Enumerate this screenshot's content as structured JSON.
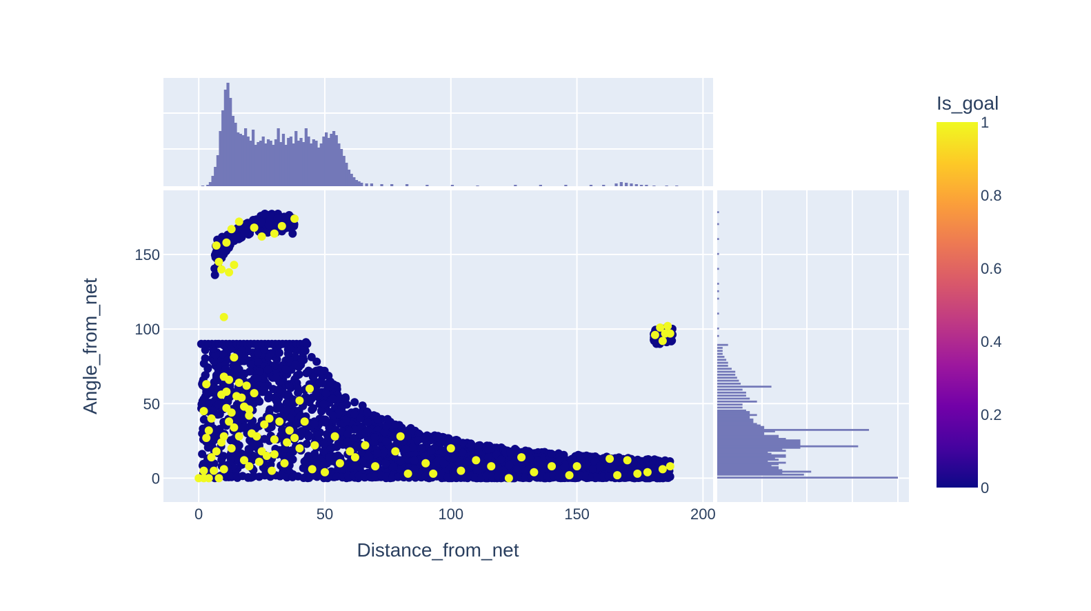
{
  "chart_data": {
    "type": "scatter",
    "xlabel": "Distance_from_net",
    "ylabel": "Angle_from_net",
    "x_ticks": [
      0,
      50,
      100,
      150,
      200
    ],
    "y_ticks": [
      0,
      50,
      100,
      150
    ],
    "x_tick_labels": [
      "0",
      "50",
      "100",
      "150",
      "200"
    ],
    "y_tick_labels": [
      "0",
      "50",
      "100",
      "150"
    ],
    "xlim": [
      -14,
      204
    ],
    "ylim": [
      -16,
      193
    ],
    "colorbar": {
      "title": "Is_goal",
      "range": [
        0,
        1
      ],
      "ticks": [
        "0",
        "0.2",
        "0.4",
        "0.6",
        "0.8",
        "1"
      ],
      "colorscale": [
        "#0d0887",
        "#46039f",
        "#7201a8",
        "#9c179e",
        "#bd3786",
        "#d8576b",
        "#ed7953",
        "#fb9f3a",
        "#fdca26",
        "#f0f921"
      ]
    },
    "colors": {
      "no_goal": "#0d0887",
      "goal": "#f0f921",
      "histogram": "#7378b8",
      "panel": "#e5ecf6"
    },
    "marginal_top": {
      "type": "histogram",
      "bins": [
        [
          1,
          1
        ],
        [
          3,
          2
        ],
        [
          4,
          6
        ],
        [
          5,
          15
        ],
        [
          6,
          28
        ],
        [
          7,
          45
        ],
        [
          8,
          80
        ],
        [
          9,
          110
        ],
        [
          10,
          140
        ],
        [
          11,
          150
        ],
        [
          12,
          128
        ],
        [
          13,
          102
        ],
        [
          14,
          92
        ],
        [
          15,
          78
        ],
        [
          16,
          76
        ],
        [
          17,
          74
        ],
        [
          18,
          84
        ],
        [
          19,
          72
        ],
        [
          20,
          66
        ],
        [
          21,
          82
        ],
        [
          22,
          60
        ],
        [
          23,
          64
        ],
        [
          24,
          66
        ],
        [
          25,
          72
        ],
        [
          26,
          62
        ],
        [
          27,
          68
        ],
        [
          28,
          66
        ],
        [
          29,
          60
        ],
        [
          30,
          68
        ],
        [
          31,
          84
        ],
        [
          32,
          64
        ],
        [
          33,
          76
        ],
        [
          34,
          60
        ],
        [
          35,
          70
        ],
        [
          36,
          72
        ],
        [
          37,
          62
        ],
        [
          38,
          80
        ],
        [
          39,
          66
        ],
        [
          40,
          70
        ],
        [
          41,
          64
        ],
        [
          42,
          84
        ],
        [
          43,
          72
        ],
        [
          44,
          62
        ],
        [
          45,
          68
        ],
        [
          46,
          66
        ],
        [
          47,
          56
        ],
        [
          48,
          62
        ],
        [
          49,
          72
        ],
        [
          50,
          78
        ],
        [
          51,
          70
        ],
        [
          52,
          76
        ],
        [
          53,
          80
        ],
        [
          54,
          74
        ],
        [
          55,
          62
        ],
        [
          56,
          54
        ],
        [
          57,
          44
        ],
        [
          58,
          34
        ],
        [
          59,
          24
        ],
        [
          60,
          18
        ],
        [
          61,
          13
        ],
        [
          62,
          9
        ],
        [
          63,
          7
        ],
        [
          64,
          5
        ],
        [
          66,
          4
        ],
        [
          68,
          4
        ],
        [
          72,
          3
        ],
        [
          76,
          3
        ],
        [
          82,
          3
        ],
        [
          90,
          2
        ],
        [
          100,
          2
        ],
        [
          110,
          1
        ],
        [
          125,
          2
        ],
        [
          135,
          2
        ],
        [
          145,
          2
        ],
        [
          155,
          2
        ],
        [
          160,
          2
        ],
        [
          165,
          4
        ],
        [
          167,
          6
        ],
        [
          169,
          5
        ],
        [
          171,
          4
        ],
        [
          173,
          3
        ],
        [
          175,
          2
        ],
        [
          177,
          2
        ],
        [
          180,
          1
        ],
        [
          185,
          1
        ],
        [
          189,
          1
        ]
      ]
    },
    "marginal_right": {
      "type": "histogram",
      "bins": [
        [
          0,
          100
        ],
        [
          2,
          48
        ],
        [
          3,
          36
        ],
        [
          4,
          52
        ],
        [
          5,
          36
        ],
        [
          6,
          34
        ],
        [
          7,
          34
        ],
        [
          8,
          30
        ],
        [
          9,
          34
        ],
        [
          10,
          38
        ],
        [
          11,
          28
        ],
        [
          12,
          34
        ],
        [
          13,
          32
        ],
        [
          14,
          38
        ],
        [
          15,
          38
        ],
        [
          16,
          30
        ],
        [
          17,
          28
        ],
        [
          18,
          38
        ],
        [
          19,
          36
        ],
        [
          20,
          46
        ],
        [
          21,
          78
        ],
        [
          22,
          46
        ],
        [
          23,
          46
        ],
        [
          24,
          46
        ],
        [
          25,
          46
        ],
        [
          26,
          38
        ],
        [
          27,
          34
        ],
        [
          28,
          34
        ],
        [
          29,
          26
        ],
        [
          30,
          26
        ],
        [
          31,
          32
        ],
        [
          32,
          84
        ],
        [
          33,
          26
        ],
        [
          34,
          26
        ],
        [
          35,
          24
        ],
        [
          36,
          22
        ],
        [
          37,
          20
        ],
        [
          38,
          20
        ],
        [
          39,
          20
        ],
        [
          40,
          18
        ],
        [
          41,
          18
        ],
        [
          42,
          22
        ],
        [
          43,
          18
        ],
        [
          44,
          18
        ],
        [
          45,
          16
        ],
        [
          47,
          14
        ],
        [
          49,
          14
        ],
        [
          51,
          22
        ],
        [
          53,
          18
        ],
        [
          55,
          16
        ],
        [
          57,
          16
        ],
        [
          59,
          14
        ],
        [
          61,
          30
        ],
        [
          63,
          13
        ],
        [
          65,
          12
        ],
        [
          67,
          11
        ],
        [
          69,
          10
        ],
        [
          71,
          10
        ],
        [
          73,
          8
        ],
        [
          75,
          6
        ],
        [
          77,
          6
        ],
        [
          79,
          5
        ],
        [
          81,
          4
        ],
        [
          83,
          3
        ],
        [
          85,
          3
        ],
        [
          87,
          3
        ],
        [
          89,
          6
        ],
        [
          95,
          1
        ],
        [
          100,
          1
        ],
        [
          110,
          1
        ],
        [
          120,
          1
        ],
        [
          125,
          1
        ],
        [
          130,
          1
        ],
        [
          140,
          1
        ],
        [
          150,
          1
        ],
        [
          160,
          1
        ],
        [
          170,
          1
        ],
        [
          178,
          1
        ]
      ]
    },
    "goal_points": [
      [
        0,
        0
      ],
      [
        2,
        0
      ],
      [
        4,
        0
      ],
      [
        8,
        0
      ],
      [
        3,
        27
      ],
      [
        4,
        32
      ],
      [
        2,
        45
      ],
      [
        5,
        40
      ],
      [
        3,
        63
      ],
      [
        5,
        14
      ],
      [
        7,
        18
      ],
      [
        9,
        24
      ],
      [
        10,
        28
      ],
      [
        10,
        6
      ],
      [
        12,
        38
      ],
      [
        14,
        34
      ],
      [
        13,
        44
      ],
      [
        15,
        55
      ],
      [
        17,
        54
      ],
      [
        16,
        64
      ],
      [
        18,
        48
      ],
      [
        19,
        62
      ],
      [
        20,
        42
      ],
      [
        20,
        46
      ],
      [
        22,
        57
      ],
      [
        21,
        30
      ],
      [
        23,
        28
      ],
      [
        24,
        11
      ],
      [
        25,
        18
      ],
      [
        26,
        36
      ],
      [
        28,
        40
      ],
      [
        30,
        26
      ],
      [
        32,
        38
      ],
      [
        35,
        24
      ],
      [
        38,
        27
      ],
      [
        40,
        20
      ],
      [
        42,
        38
      ],
      [
        14,
        81
      ],
      [
        10,
        68
      ],
      [
        12,
        66
      ],
      [
        11,
        58
      ],
      [
        9,
        56
      ],
      [
        16,
        28
      ],
      [
        18,
        12
      ],
      [
        20,
        8
      ],
      [
        30,
        16
      ],
      [
        34,
        10
      ],
      [
        45,
        6
      ],
      [
        50,
        4
      ],
      [
        56,
        10
      ],
      [
        60,
        18
      ],
      [
        70,
        8
      ],
      [
        78,
        18
      ],
      [
        83,
        3
      ],
      [
        90,
        10
      ],
      [
        93,
        3
      ],
      [
        104,
        5
      ],
      [
        116,
        8
      ],
      [
        123,
        0
      ],
      [
        133,
        4
      ],
      [
        140,
        8
      ],
      [
        147,
        2
      ],
      [
        163,
        13
      ],
      [
        166,
        2
      ],
      [
        174,
        3
      ],
      [
        184,
        6
      ],
      [
        187,
        8
      ],
      [
        8,
        145
      ],
      [
        7,
        156
      ],
      [
        9,
        140
      ],
      [
        11,
        158
      ],
      [
        13,
        167
      ],
      [
        16,
        172
      ],
      [
        22,
        168
      ],
      [
        25,
        162
      ],
      [
        30,
        164
      ],
      [
        33,
        169
      ],
      [
        38,
        174
      ],
      [
        14,
        143
      ],
      [
        10,
        108
      ],
      [
        12,
        138
      ],
      [
        181,
        96
      ],
      [
        183,
        101
      ],
      [
        185,
        97
      ],
      [
        186,
        102
      ],
      [
        187,
        97
      ],
      [
        184,
        92
      ],
      [
        27,
        15
      ],
      [
        29,
        5
      ],
      [
        36,
        32
      ],
      [
        40,
        52
      ],
      [
        44,
        60
      ],
      [
        11,
        47
      ],
      [
        13,
        20
      ],
      [
        6,
        5
      ],
      [
        2,
        5
      ],
      [
        46,
        22
      ],
      [
        54,
        28
      ],
      [
        62,
        14
      ],
      [
        66,
        22
      ],
      [
        80,
        28
      ],
      [
        100,
        20
      ],
      [
        110,
        12
      ],
      [
        128,
        14
      ],
      [
        150,
        8
      ],
      [
        170,
        12
      ],
      [
        178,
        4
      ]
    ]
  }
}
